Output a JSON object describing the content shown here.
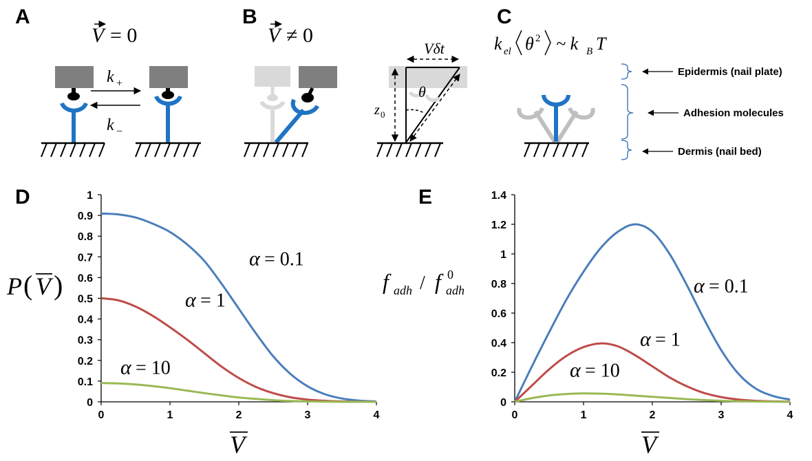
{
  "panels": {
    "A": {
      "letter": "A",
      "eq_lhs": "V",
      "eq_rhs": "= 0",
      "k_plus": "k",
      "k_plus_sub": "+",
      "k_minus": "k",
      "k_minus_sub": "−"
    },
    "B": {
      "letter": "B",
      "eq_lhs": "V",
      "eq_rhs": "≠ 0",
      "v_delta_t": "Vδt",
      "theta": "θ",
      "z0": "z",
      "z0_sub": "0"
    },
    "C": {
      "letter": "C",
      "eq_k": "k",
      "eq_k_sub": "el",
      "eq_theta": "θ",
      "eq_sq": "2",
      "eq_sim": "~ k",
      "eq_kb_sub": "B",
      "eq_T": "T",
      "layers": [
        "Epidermis (nail plate)",
        "Adhesion molecules",
        "Dermis (nail bed)"
      ]
    },
    "D": {
      "letter": "D",
      "ylabel_P": "P",
      "ylabel_V": "V",
      "xlabel_V": "V"
    },
    "E": {
      "letter": "E",
      "ylabel_f": "f",
      "ylabel_sub": "adh",
      "ylabel_slash": "/",
      "ylabel_f0": "f",
      "ylabel_sup0": "0",
      "xlabel_V": "V"
    }
  },
  "colors": {
    "blue": "#4a7ebb",
    "red": "#be4b48",
    "green": "#98b954",
    "molecule": "#1f74c4",
    "grey_block": "#7f7f7f",
    "light_grey": "#d9d9d9"
  },
  "chart_data": [
    {
      "type": "line",
      "panel": "D",
      "xlim": [
        0,
        4
      ],
      "ylim": [
        0,
        1
      ],
      "x_ticks": [
        0,
        1,
        2,
        3,
        4
      ],
      "y_ticks": [
        0,
        0.1,
        0.2,
        0.3,
        0.4,
        0.5,
        0.6,
        0.7,
        0.8,
        0.9,
        1
      ],
      "y_tick_labels": [
        "0",
        "0.1",
        "0.2",
        "0.3",
        "0.4",
        "0.5",
        "0.6",
        "0.7",
        "0.8",
        "0.9",
        "1"
      ],
      "grid": false,
      "series": [
        {
          "label_greek": "α",
          "label_value": "= 0.1",
          "color": "#4a7ebb",
          "x": [
            0,
            0.25,
            0.5,
            0.75,
            1,
            1.25,
            1.5,
            1.75,
            2,
            2.25,
            2.5,
            2.75,
            3,
            3.25,
            3.5,
            3.75,
            4
          ],
          "y": [
            0.909,
            0.905,
            0.89,
            0.86,
            0.82,
            0.76,
            0.68,
            0.57,
            0.45,
            0.33,
            0.22,
            0.135,
            0.075,
            0.037,
            0.016,
            0.006,
            0.002
          ]
        },
        {
          "label_greek": "α",
          "label_value": "= 1",
          "color": "#be4b48",
          "x": [
            0,
            0.25,
            0.5,
            0.75,
            1,
            1.25,
            1.5,
            1.75,
            2,
            2.25,
            2.5,
            2.75,
            3,
            3.25,
            3.5,
            3.75,
            4
          ],
          "y": [
            0.5,
            0.49,
            0.46,
            0.415,
            0.36,
            0.3,
            0.235,
            0.17,
            0.115,
            0.072,
            0.042,
            0.022,
            0.011,
            0.005,
            0.002,
            0.001,
            0.0
          ]
        },
        {
          "label_greek": "α",
          "label_value": "= 10",
          "color": "#98b954",
          "x": [
            0,
            0.25,
            0.5,
            0.75,
            1,
            1.25,
            1.5,
            1.75,
            2,
            2.25,
            2.5,
            2.75,
            3,
            3.25,
            3.5,
            3.75,
            4
          ],
          "y": [
            0.091,
            0.089,
            0.084,
            0.076,
            0.066,
            0.054,
            0.042,
            0.031,
            0.021,
            0.014,
            0.008,
            0.004,
            0.002,
            0.001,
            0.0,
            0.0,
            0.0
          ]
        }
      ]
    },
    {
      "type": "line",
      "panel": "E",
      "xlim": [
        0,
        4
      ],
      "ylim": [
        0,
        1.4
      ],
      "x_ticks": [
        0,
        1,
        2,
        3,
        4
      ],
      "y_ticks": [
        0,
        0.2,
        0.4,
        0.6,
        0.8,
        1,
        1.2,
        1.4
      ],
      "y_tick_labels": [
        "0",
        "0.2",
        "0.4",
        "0.6",
        "0.8",
        "1",
        "1.2",
        "1.4"
      ],
      "grid": false,
      "series": [
        {
          "label_greek": "α",
          "label_value": "= 0.1",
          "color": "#4a7ebb",
          "x": [
            0,
            0.25,
            0.5,
            0.75,
            1,
            1.25,
            1.5,
            1.75,
            2,
            2.25,
            2.5,
            2.75,
            3,
            3.25,
            3.5,
            3.75,
            4
          ],
          "y": [
            0.0,
            0.24,
            0.47,
            0.69,
            0.88,
            1.04,
            1.15,
            1.2,
            1.15,
            1.0,
            0.79,
            0.56,
            0.35,
            0.19,
            0.09,
            0.04,
            0.015
          ]
        },
        {
          "label_greek": "α",
          "label_value": "= 1",
          "color": "#be4b48",
          "x": [
            0,
            0.25,
            0.5,
            0.75,
            1,
            1.25,
            1.5,
            1.75,
            2,
            2.25,
            2.5,
            2.75,
            3,
            3.25,
            3.5,
            3.75,
            4
          ],
          "y": [
            0.0,
            0.11,
            0.22,
            0.31,
            0.37,
            0.395,
            0.375,
            0.315,
            0.24,
            0.165,
            0.105,
            0.06,
            0.032,
            0.016,
            0.007,
            0.003,
            0.001
          ]
        },
        {
          "label_greek": "α",
          "label_value": "= 10",
          "color": "#98b954",
          "x": [
            0,
            0.25,
            0.5,
            0.75,
            1,
            1.25,
            1.5,
            1.75,
            2,
            2.25,
            2.5,
            2.75,
            3,
            3.25,
            3.5,
            3.75,
            4
          ],
          "y": [
            0.0,
            0.025,
            0.043,
            0.053,
            0.057,
            0.055,
            0.05,
            0.042,
            0.034,
            0.026,
            0.018,
            0.012,
            0.007,
            0.004,
            0.002,
            0.001,
            0.0
          ]
        }
      ]
    }
  ]
}
